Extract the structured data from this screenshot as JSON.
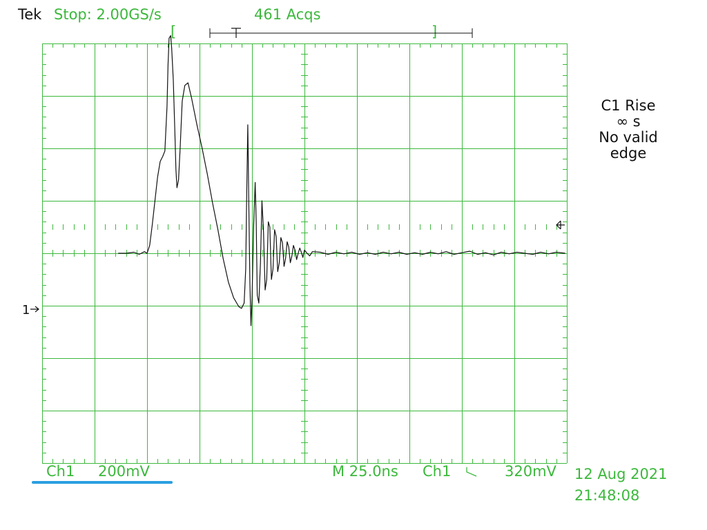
{
  "header": {
    "brand": "Tek",
    "acq_state": "Stop: 2.00GS/s",
    "acq_count": "461 Acqs"
  },
  "trigger_bar": {
    "left_bracket": "[",
    "right_bracket": "]",
    "trigger_marker": "T"
  },
  "measurement": {
    "line1": "C1 Rise",
    "line2": "∞ s",
    "line3": "No valid",
    "line4": "edge"
  },
  "channel_marker": {
    "label": "1",
    "arrow": "→"
  },
  "trigger_level_marker": "⊲",
  "footer": {
    "channel": "Ch1",
    "volts_per_div": "200mV",
    "timebase": "M 25.0ns",
    "trig_source": "Ch1",
    "trig_slope_icon": "falling-edge-icon",
    "trig_slope_symbol": "\\",
    "trig_level": "320mV",
    "date": "12 Aug 2021",
    "time": "21:48:08"
  },
  "colors": {
    "grid": "#3cb83c",
    "text": "#3cb83c",
    "trace": "#111111",
    "channel_underline": "#2a9fe0",
    "background": "#ffffff"
  },
  "waveform": {
    "channel": "Ch1",
    "volts_per_div_mV": 200,
    "time_per_div_ns": 25,
    "divisions_x": 10,
    "divisions_y": 8,
    "baseline_div": 0,
    "points_div": [
      [
        -3.55,
        0
      ],
      [
        -3.4,
        0
      ],
      [
        -3.25,
        0.02
      ],
      [
        -3.15,
        -0.02
      ],
      [
        -3.05,
        0.03
      ],
      [
        -3.0,
        0
      ],
      [
        -2.95,
        0.15
      ],
      [
        -2.9,
        0.55
      ],
      [
        -2.85,
        1.0
      ],
      [
        -2.8,
        1.45
      ],
      [
        -2.75,
        1.75
      ],
      [
        -2.7,
        1.85
      ],
      [
        -2.66,
        1.95
      ],
      [
        -2.62,
        2.8
      ],
      [
        -2.6,
        3.6
      ],
      [
        -2.58,
        4.1
      ],
      [
        -2.55,
        4.15
      ],
      [
        -2.53,
        3.9
      ],
      [
        -2.5,
        3.3
      ],
      [
        -2.47,
        2.3
      ],
      [
        -2.45,
        1.6
      ],
      [
        -2.43,
        1.25
      ],
      [
        -2.4,
        1.4
      ],
      [
        -2.37,
        2.0
      ],
      [
        -2.33,
        2.9
      ],
      [
        -2.28,
        3.2
      ],
      [
        -2.22,
        3.25
      ],
      [
        -2.15,
        2.95
      ],
      [
        -2.05,
        2.45
      ],
      [
        -1.95,
        2.0
      ],
      [
        -1.85,
        1.5
      ],
      [
        -1.75,
        0.95
      ],
      [
        -1.65,
        0.45
      ],
      [
        -1.55,
        -0.1
      ],
      [
        -1.45,
        -0.55
      ],
      [
        -1.35,
        -0.85
      ],
      [
        -1.25,
        -1.02
      ],
      [
        -1.2,
        -1.05
      ],
      [
        -1.15,
        -0.95
      ],
      [
        -1.12,
        -0.3
      ],
      [
        -1.1,
        1.2
      ],
      [
        -1.08,
        2.45
      ],
      [
        -1.06,
        0.9
      ],
      [
        -1.04,
        -0.6
      ],
      [
        -1.02,
        -1.38
      ],
      [
        -1.0,
        -0.9
      ],
      [
        -0.97,
        0.5
      ],
      [
        -0.94,
        1.35
      ],
      [
        -0.92,
        0.6
      ],
      [
        -0.9,
        -0.8
      ],
      [
        -0.87,
        -0.95
      ],
      [
        -0.84,
        -0.2
      ],
      [
        -0.81,
        1.0
      ],
      [
        -0.78,
        0.4
      ],
      [
        -0.75,
        -0.7
      ],
      [
        -0.72,
        -0.5
      ],
      [
        -0.69,
        0.6
      ],
      [
        -0.66,
        0.5
      ],
      [
        -0.63,
        -0.5
      ],
      [
        -0.6,
        -0.3
      ],
      [
        -0.57,
        0.45
      ],
      [
        -0.54,
        0.32
      ],
      [
        -0.51,
        -0.35
      ],
      [
        -0.48,
        -0.18
      ],
      [
        -0.45,
        0.3
      ],
      [
        -0.42,
        0.2
      ],
      [
        -0.39,
        -0.25
      ],
      [
        -0.36,
        -0.1
      ],
      [
        -0.33,
        0.22
      ],
      [
        -0.3,
        0.12
      ],
      [
        -0.27,
        -0.18
      ],
      [
        -0.24,
        -0.05
      ],
      [
        -0.21,
        0.15
      ],
      [
        -0.18,
        0.06
      ],
      [
        -0.15,
        -0.12
      ],
      [
        -0.12,
        0.0
      ],
      [
        -0.09,
        0.1
      ],
      [
        -0.06,
        0.02
      ],
      [
        -0.03,
        -0.08
      ],
      [
        0.0,
        0.06
      ],
      [
        0.05,
        0.0
      ],
      [
        0.1,
        -0.05
      ],
      [
        0.15,
        0.03
      ],
      [
        0.3,
        0.02
      ],
      [
        0.45,
        -0.02
      ],
      [
        0.6,
        0.02
      ],
      [
        0.75,
        -0.01
      ],
      [
        0.9,
        0.02
      ],
      [
        1.05,
        -0.02
      ],
      [
        1.2,
        0.01
      ],
      [
        1.35,
        -0.02
      ],
      [
        1.5,
        0.02
      ],
      [
        1.65,
        -0.01
      ],
      [
        1.8,
        0.02
      ],
      [
        1.95,
        -0.02
      ],
      [
        2.1,
        0.01
      ],
      [
        2.25,
        -0.02
      ],
      [
        2.4,
        0.02
      ],
      [
        2.55,
        -0.01
      ],
      [
        2.7,
        0.03
      ],
      [
        2.85,
        -0.02
      ],
      [
        3.0,
        0.01
      ],
      [
        3.15,
        0.04
      ],
      [
        3.3,
        -0.02
      ],
      [
        3.45,
        0.01
      ],
      [
        3.6,
        -0.03
      ],
      [
        3.75,
        0.02
      ],
      [
        3.9,
        -0.01
      ],
      [
        4.05,
        0.02
      ],
      [
        4.2,
        0.0
      ],
      [
        4.35,
        -0.02
      ],
      [
        4.5,
        0.02
      ],
      [
        4.65,
        -0.01
      ],
      [
        4.8,
        0.02
      ],
      [
        4.97,
        0.0
      ]
    ]
  }
}
